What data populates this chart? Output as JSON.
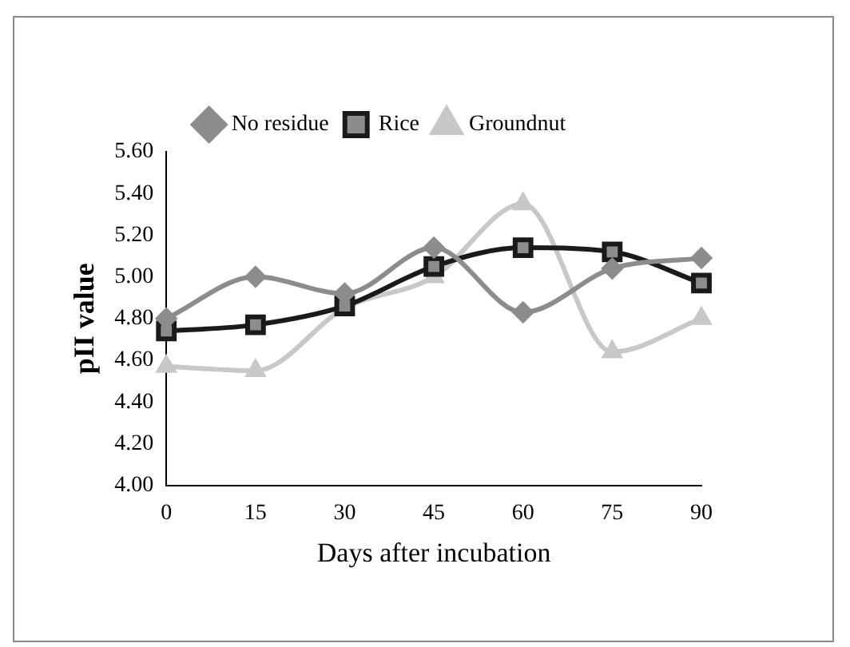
{
  "chart_data": {
    "type": "line",
    "xlabel": "Days after incubation",
    "ylabel": "pII value",
    "categories": [
      "0",
      "15",
      "30",
      "45",
      "60",
      "75",
      "90"
    ],
    "series": [
      {
        "name": "No residue",
        "color": "#8c8c8c",
        "marker": "diamond",
        "values": [
          4.8,
          5.0,
          4.92,
          5.14,
          4.83,
          5.04,
          5.09
        ]
      },
      {
        "name": "Rice",
        "color": "#1a1a1a",
        "marker": "square",
        "values": [
          4.74,
          4.77,
          4.86,
          5.05,
          5.14,
          5.12,
          4.97
        ]
      },
      {
        "name": "Groundnut",
        "color": "#c8c8c8",
        "marker": "triangle",
        "values": [
          4.57,
          4.55,
          4.85,
          5.0,
          5.35,
          4.64,
          4.8
        ]
      }
    ],
    "ylim": [
      4.0,
      5.6
    ],
    "yticks": [
      {
        "value": 4.0,
        "label": "4.00"
      },
      {
        "value": 4.2,
        "label": "4.20"
      },
      {
        "value": 4.4,
        "label": "4.40"
      },
      {
        "value": 4.6,
        "label": "4.60"
      },
      {
        "value": 4.8,
        "label": "4.80"
      },
      {
        "value": 5.0,
        "label": "5.00"
      },
      {
        "value": 5.2,
        "label": "5.20"
      },
      {
        "value": 5.4,
        "label": "5.40"
      },
      {
        "value": 5.6,
        "label": "5.60"
      }
    ],
    "grid": false,
    "legend": "top"
  }
}
